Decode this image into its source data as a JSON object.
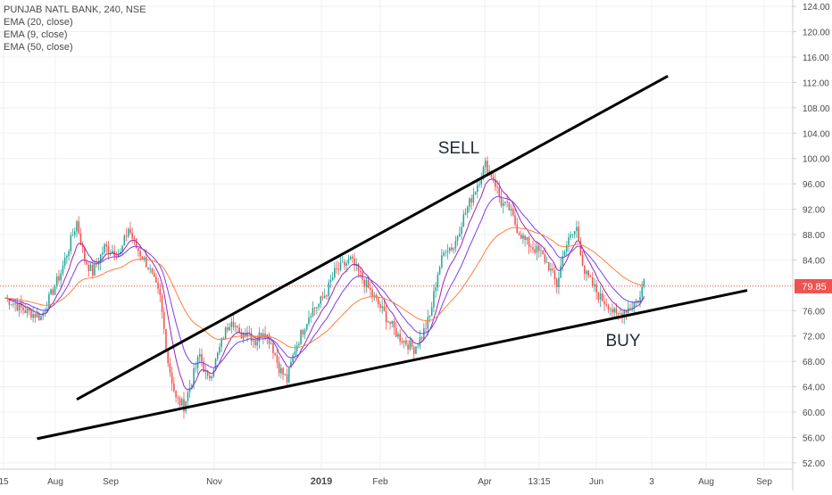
{
  "legend": {
    "symbol_line": "PUNJAB NATL BANK, 240, NSE",
    "indicators": [
      "EMA (20, close)",
      "EMA (9, close)",
      "EMA (50, close)"
    ]
  },
  "annotations": {
    "sell": "SELL",
    "buy": "BUY"
  },
  "last_price_label": "79.85",
  "colors": {
    "background": "#ffffff",
    "grid": "#eef0f3",
    "up_candle": "#26a69a",
    "down_candle": "#ef5350",
    "ema20": "#7b3ff2",
    "ema9": "#9c27b0",
    "ema50": "#ff7f3f",
    "price_line": "#ef5350",
    "trend_lines": "#000000",
    "axis_text": "#4a4a4a"
  },
  "chart_data": {
    "type": "candlestick",
    "title": "PUNJAB NATL BANK, 240, NSE",
    "y_axis_side": "right",
    "ylim": [
      51,
      125
    ],
    "y_ticks": [
      "52.00",
      "56.00",
      "60.00",
      "64.00",
      "68.00",
      "72.00",
      "76.00",
      "80.00",
      "84.00",
      "88.00",
      "92.00",
      "96.00",
      "100.00",
      "104.00",
      "108.00",
      "112.00",
      "116.00",
      "120.00",
      "124.00"
    ],
    "x_ticks": [
      "15",
      "Aug",
      "Sep",
      "Nov",
      "2019",
      "Feb",
      "Apr",
      "13:15",
      "Jun",
      "3",
      "Aug",
      "Sep"
    ],
    "x_ticks_bold": [
      "2019"
    ],
    "last_price": 79.85,
    "grid": true,
    "price_path": [
      {
        "t": 0,
        "price": 78
      },
      {
        "t": 5,
        "price": 76
      },
      {
        "t": 9,
        "price": 75
      },
      {
        "t": 14,
        "price": 82
      },
      {
        "t": 16,
        "price": 86
      },
      {
        "t": 18,
        "price": 90
      },
      {
        "t": 20,
        "price": 84
      },
      {
        "t": 22,
        "price": 82
      },
      {
        "t": 25,
        "price": 86
      },
      {
        "t": 29,
        "price": 85
      },
      {
        "t": 31,
        "price": 89
      },
      {
        "t": 33,
        "price": 86
      },
      {
        "t": 36,
        "price": 83
      },
      {
        "t": 39,
        "price": 78
      },
      {
        "t": 41,
        "price": 68
      },
      {
        "t": 43,
        "price": 62
      },
      {
        "t": 45,
        "price": 61
      },
      {
        "t": 47,
        "price": 65
      },
      {
        "t": 49,
        "price": 69
      },
      {
        "t": 51,
        "price": 65
      },
      {
        "t": 53,
        "price": 68
      },
      {
        "t": 55,
        "price": 72
      },
      {
        "t": 57,
        "price": 75
      },
      {
        "t": 59,
        "price": 72
      },
      {
        "t": 61,
        "price": 73
      },
      {
        "t": 63,
        "price": 71
      },
      {
        "t": 65,
        "price": 73
      },
      {
        "t": 67,
        "price": 71
      },
      {
        "t": 69,
        "price": 67
      },
      {
        "t": 71,
        "price": 65
      },
      {
        "t": 73,
        "price": 70
      },
      {
        "t": 75,
        "price": 73
      },
      {
        "t": 77,
        "price": 76
      },
      {
        "t": 79,
        "price": 77
      },
      {
        "t": 81,
        "price": 79
      },
      {
        "t": 83,
        "price": 82
      },
      {
        "t": 85,
        "price": 83
      },
      {
        "t": 87,
        "price": 84
      },
      {
        "t": 89,
        "price": 82
      },
      {
        "t": 91,
        "price": 80
      },
      {
        "t": 93,
        "price": 78
      },
      {
        "t": 95,
        "price": 76
      },
      {
        "t": 97,
        "price": 74
      },
      {
        "t": 99,
        "price": 72
      },
      {
        "t": 101,
        "price": 71
      },
      {
        "t": 103,
        "price": 70
      },
      {
        "t": 105,
        "price": 72
      },
      {
        "t": 107,
        "price": 75
      },
      {
        "t": 109,
        "price": 82
      },
      {
        "t": 111,
        "price": 86
      },
      {
        "t": 113,
        "price": 86
      },
      {
        "t": 115,
        "price": 90
      },
      {
        "t": 117,
        "price": 93
      },
      {
        "t": 119,
        "price": 96
      },
      {
        "t": 121,
        "price": 99
      },
      {
        "t": 123,
        "price": 97
      },
      {
        "t": 125,
        "price": 93
      },
      {
        "t": 127,
        "price": 92
      },
      {
        "t": 129,
        "price": 89
      },
      {
        "t": 131,
        "price": 87
      },
      {
        "t": 133,
        "price": 86
      },
      {
        "t": 135,
        "price": 85
      },
      {
        "t": 137,
        "price": 83
      },
      {
        "t": 139,
        "price": 80
      },
      {
        "t": 141,
        "price": 86
      },
      {
        "t": 143,
        "price": 88
      },
      {
        "t": 144,
        "price": 89
      },
      {
        "t": 146,
        "price": 82
      },
      {
        "t": 148,
        "price": 80
      },
      {
        "t": 150,
        "price": 78
      },
      {
        "t": 152,
        "price": 77
      },
      {
        "t": 154,
        "price": 75
      },
      {
        "t": 156,
        "price": 76
      },
      {
        "t": 158,
        "price": 77
      },
      {
        "t": 160,
        "price": 78
      },
      {
        "t": 161,
        "price": 81
      }
    ],
    "trend_lines": [
      {
        "name": "upper",
        "from": {
          "t": 18,
          "price": 62
        },
        "to": {
          "t": 167,
          "price": 113
        }
      },
      {
        "name": "lower",
        "from": {
          "t": 8,
          "price": 55.8
        },
        "to": {
          "t": 187,
          "price": 79.2
        }
      }
    ]
  }
}
